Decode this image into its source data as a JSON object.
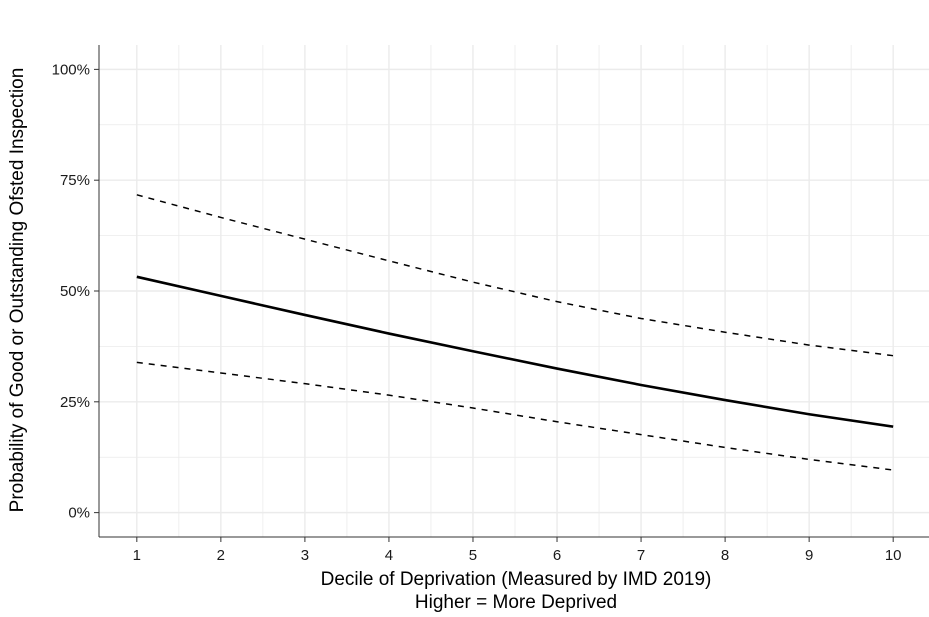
{
  "chart_data": {
    "type": "line",
    "title": "",
    "xlabel": "Decile of Deprivation (Measured by IMD 2019)",
    "xlabel_line2": "Higher = More Deprived",
    "ylabel": "Probability of Good or Outstanding Ofsted Inspection",
    "xlim": [
      0.55,
      10.45
    ],
    "ylim": [
      -0.055,
      1.055
    ],
    "x_ticks": [
      1,
      2,
      3,
      4,
      5,
      6,
      7,
      8,
      9,
      10
    ],
    "x_tick_labels": [
      "1",
      "2",
      "3",
      "4",
      "5",
      "6",
      "7",
      "8",
      "9",
      "10"
    ],
    "y_ticks": [
      0,
      0.25,
      0.5,
      0.75,
      1.0
    ],
    "y_tick_labels": [
      "0%",
      "25%",
      "50%",
      "75%",
      "100%"
    ],
    "grid": true,
    "x": [
      1,
      2,
      3,
      4,
      5,
      6,
      7,
      8,
      9,
      10
    ],
    "series": [
      {
        "role": "estimate",
        "style": "solid",
        "values": [
          0.532,
          0.489,
          0.446,
          0.404,
          0.364,
          0.325,
          0.288,
          0.254,
          0.222,
          0.194
        ]
      },
      {
        "role": "upper-bound",
        "style": "dashed",
        "values": [
          0.717,
          0.666,
          0.617,
          0.568,
          0.52,
          0.476,
          0.438,
          0.407,
          0.378,
          0.354
        ]
      },
      {
        "role": "lower-bound",
        "style": "dashed",
        "values": [
          0.339,
          0.315,
          0.291,
          0.265,
          0.236,
          0.205,
          0.176,
          0.147,
          0.12,
          0.096
        ]
      }
    ],
    "colors": {
      "line": "#000000",
      "grid": "#ebebeb",
      "axis": "#333333"
    }
  }
}
